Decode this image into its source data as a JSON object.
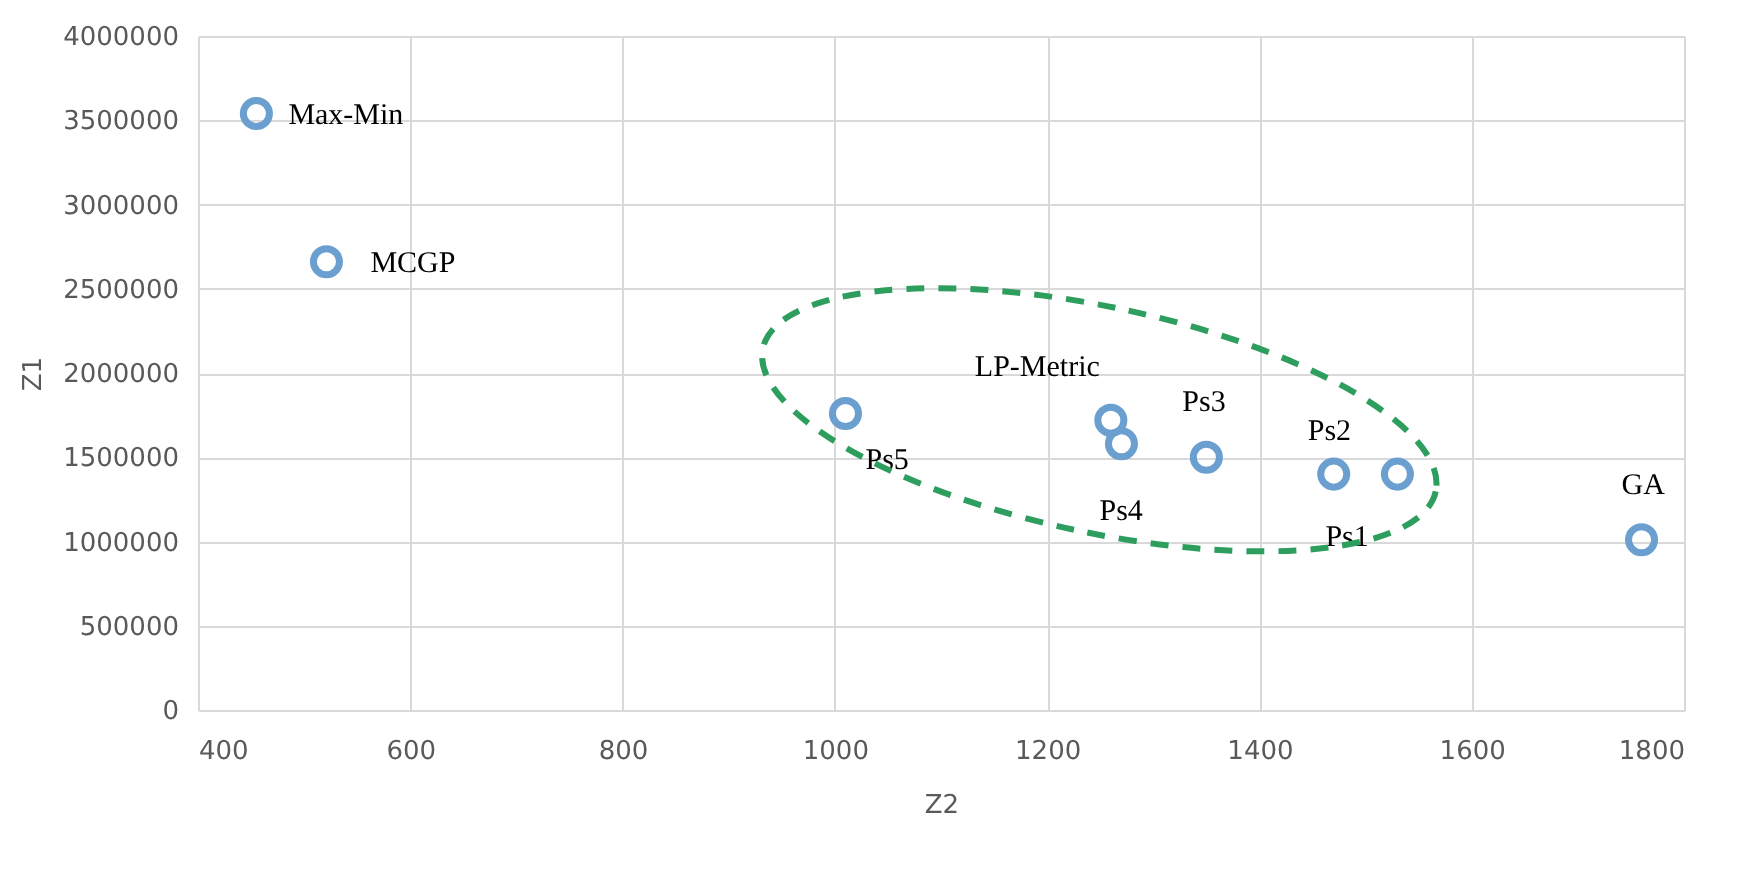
{
  "chart_data": {
    "type": "scatter",
    "xlabel": "Z2",
    "ylabel": "Z1",
    "x": [
      455,
      521,
      1010,
      1260,
      1270,
      1350,
      1470,
      1530,
      1760
    ],
    "series": [
      {
        "color": "#6a9fd0",
        "values": [
          3540000,
          2660000,
          1760000,
          1720000,
          1580000,
          1500000,
          1400000,
          1400000,
          1010000
        ]
      }
    ],
    "xlim": [
      400,
      1800
    ],
    "xticks": [
      400,
      600,
      800,
      1000,
      1200,
      1400,
      1600,
      1800
    ],
    "ylim": [
      0,
      4000000
    ],
    "yticks": [
      0,
      500000,
      1000000,
      1500000,
      2000000,
      2500000,
      3000000,
      3500000,
      4000000
    ],
    "grid": true,
    "marker": "circle",
    "annotations": [
      {
        "text": "Max-Min",
        "x": 455,
        "y": 3540000
      },
      {
        "text": "MCGP",
        "x": 521,
        "y": 2660000
      },
      {
        "text": "Ps5",
        "x": 1010,
        "y": 1760000
      },
      {
        "text": "LP-Metric",
        "x": 1260,
        "y": 1720000
      },
      {
        "text": "Ps4",
        "x": 1270,
        "y": 1580000
      },
      {
        "text": "Ps3",
        "x": 1350,
        "y": 1500000
      },
      {
        "text": "Ps2",
        "x": 1470,
        "y": 1400000
      },
      {
        "text": "Ps1",
        "x": 1530,
        "y": 1400000
      },
      {
        "text": "GA",
        "x": 1760,
        "y": 1010000
      }
    ]
  }
}
